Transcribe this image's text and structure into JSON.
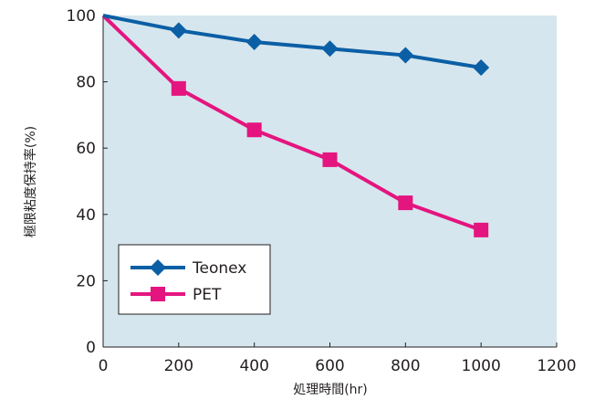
{
  "chart_data": {
    "type": "line",
    "xlabel": "処理時間(hr)",
    "ylabel": "極限粘度保持率(%)",
    "xlim": [
      0,
      1200
    ],
    "ylim": [
      0,
      100
    ],
    "xticks": [
      "0",
      "200",
      "400",
      "600",
      "800",
      "1000",
      "1200"
    ],
    "yticks": [
      "0",
      "20",
      "40",
      "60",
      "80",
      "100"
    ],
    "grid": false,
    "legend_position": "bottom-left",
    "plot_background": "#d6e6ee",
    "series": [
      {
        "name": "Teonex",
        "color": "#0b5fa5",
        "marker": "diamond",
        "x": [
          0,
          200,
          400,
          600,
          800,
          1000
        ],
        "y": [
          100,
          95.5,
          92,
          90,
          88,
          84.3
        ]
      },
      {
        "name": "PET",
        "color": "#e4157f",
        "marker": "square",
        "x": [
          0,
          200,
          400,
          600,
          800,
          1000
        ],
        "y": [
          100,
          78,
          65.5,
          56.5,
          43.5,
          35.3
        ]
      }
    ]
  }
}
